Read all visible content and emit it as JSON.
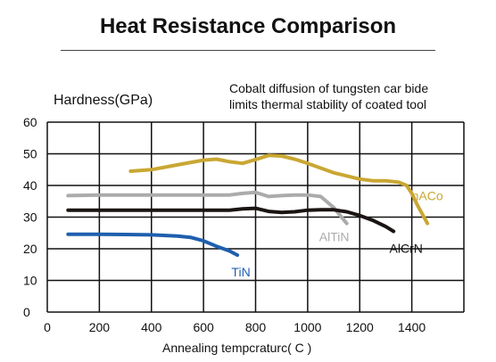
{
  "chart_data": {
    "type": "line",
    "title": "Heat Resistance Comparison",
    "annotation": "Cobalt diffusion of tungsten car bide\nlimits thermal stability of coated tool",
    "xlabel": "Annealing tempcraturc( C )",
    "ylabel": "Hardness(GPa)",
    "xlim": [
      0,
      1600
    ],
    "ylim": [
      0,
      60
    ],
    "xticks": [
      0,
      200,
      400,
      600,
      800,
      1000,
      1200,
      1400
    ],
    "yticks": [
      0,
      10,
      20,
      30,
      40,
      50,
      60
    ],
    "grid": true,
    "series": [
      {
        "name": "nACo",
        "color": "#c9a733",
        "x": [
          320,
          400,
          500,
          600,
          650,
          700,
          750,
          800,
          850,
          900,
          950,
          1000,
          1050,
          1100,
          1150,
          1200,
          1250,
          1300,
          1350,
          1380,
          1400,
          1420,
          1440,
          1460
        ],
        "y": [
          44.5,
          45,
          46.5,
          48,
          48.3,
          47.5,
          47,
          48.2,
          49.5,
          49.3,
          48.3,
          47,
          45.5,
          44,
          43,
          42,
          41.5,
          41.5,
          41,
          40,
          37.5,
          34,
          31,
          28
        ]
      },
      {
        "name": "AlTiN",
        "color": "#ababab",
        "x": [
          80,
          200,
          300,
          400,
          500,
          600,
          650,
          700,
          750,
          800,
          850,
          900,
          950,
          1000,
          1050,
          1100,
          1150
        ],
        "y": [
          36.8,
          37,
          37,
          37,
          37,
          37,
          37,
          37,
          37.5,
          37.8,
          36.5,
          36.8,
          37,
          37,
          36.5,
          33,
          28
        ]
      },
      {
        "name": "AlCrN",
        "color": "#1a1412",
        "x": [
          80,
          200,
          300,
          400,
          500,
          600,
          700,
          750,
          800,
          850,
          900,
          950,
          1000,
          1050,
          1100,
          1150,
          1200,
          1250,
          1300,
          1330
        ],
        "y": [
          32.2,
          32.2,
          32.2,
          32.2,
          32.2,
          32.2,
          32.2,
          32.6,
          32.8,
          31.8,
          31.5,
          31.7,
          32.2,
          32.3,
          32.3,
          31.7,
          30.5,
          29,
          27,
          25.5
        ]
      },
      {
        "name": "TiN",
        "color": "#1f5fad",
        "x": [
          80,
          200,
          300,
          400,
          500,
          550,
          600,
          650,
          700,
          730
        ],
        "y": [
          24.6,
          24.6,
          24.5,
          24.4,
          24,
          23.6,
          22.5,
          20.8,
          19.3,
          18
        ]
      }
    ]
  }
}
